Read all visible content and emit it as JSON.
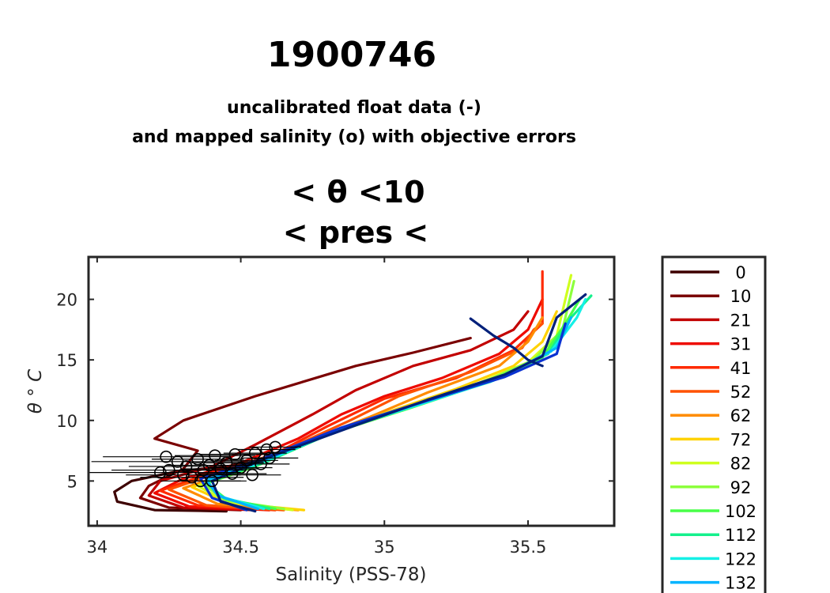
{
  "title": "1900746",
  "subtitle_lines": [
    "uncalibrated float data (-)",
    "and mapped salinity (o) with objective errors"
  ],
  "panel_title_lines": [
    "< θ <10",
    "< pres <"
  ],
  "chart_data": {
    "type": "line",
    "xlabel": "Salinity (PSS-78)",
    "ylabel": "θ ° C",
    "xlim": [
      33.97,
      35.8
    ],
    "ylim": [
      1.3,
      23.5
    ],
    "xticks": [
      34,
      34.5,
      35,
      35.5
    ],
    "xtick_labels": [
      "34",
      "34.5",
      "35",
      "35.5"
    ],
    "yticks": [
      5,
      10,
      15,
      20
    ],
    "ytick_labels": [
      "5",
      "10",
      "15",
      "20"
    ],
    "grid": false,
    "legend": {
      "placement": "outside-right",
      "title": "",
      "entries": [
        {
          "label": "0",
          "color": "#3d0000"
        },
        {
          "label": "10",
          "color": "#7a0000"
        },
        {
          "label": "21",
          "color": "#c20000"
        },
        {
          "label": "31",
          "color": "#ee0a00"
        },
        {
          "label": "41",
          "color": "#ff2a00"
        },
        {
          "label": "52",
          "color": "#ff5200"
        },
        {
          "label": "62",
          "color": "#ff8c00"
        },
        {
          "label": "72",
          "color": "#ffd200"
        },
        {
          "label": "82",
          "color": "#cfff1e"
        },
        {
          "label": "92",
          "color": "#8cff3c"
        },
        {
          "label": "102",
          "color": "#48ff48"
        },
        {
          "label": "112",
          "color": "#14f08c"
        },
        {
          "label": "122",
          "color": "#14f0e6"
        },
        {
          "label": "132",
          "color": "#00b4ff"
        }
      ]
    },
    "series": [
      {
        "label": "0",
        "color": "#3d0000",
        "points": [
          [
            34.45,
            2.5
          ],
          [
            34.2,
            2.6
          ],
          [
            34.07,
            3.3
          ],
          [
            34.06,
            4.1
          ],
          [
            34.12,
            5.0
          ],
          [
            34.28,
            5.8
          ],
          [
            34.45,
            6.2
          ]
        ]
      },
      {
        "label": "10",
        "color": "#7a0000",
        "points": [
          [
            34.5,
            2.6
          ],
          [
            34.25,
            2.8
          ],
          [
            34.15,
            3.6
          ],
          [
            34.18,
            4.6
          ],
          [
            34.3,
            6.0
          ],
          [
            34.35,
            7.5
          ],
          [
            34.2,
            8.5
          ],
          [
            34.3,
            10.0
          ],
          [
            34.55,
            12.0
          ],
          [
            34.9,
            14.5
          ],
          [
            35.1,
            15.6
          ],
          [
            35.3,
            16.8
          ]
        ]
      },
      {
        "label": "21",
        "color": "#c20000",
        "points": [
          [
            34.55,
            2.6
          ],
          [
            34.3,
            2.8
          ],
          [
            34.18,
            3.8
          ],
          [
            34.22,
            5.0
          ],
          [
            34.4,
            6.2
          ],
          [
            34.55,
            8.0
          ],
          [
            34.75,
            10.5
          ],
          [
            34.9,
            12.5
          ],
          [
            35.1,
            14.5
          ],
          [
            35.3,
            15.8
          ],
          [
            35.45,
            17.5
          ],
          [
            35.5,
            19.0
          ]
        ]
      },
      {
        "label": "31",
        "color": "#ee0a00",
        "points": [
          [
            34.6,
            2.6
          ],
          [
            34.32,
            2.9
          ],
          [
            34.2,
            4.0
          ],
          [
            34.3,
            5.2
          ],
          [
            34.5,
            6.5
          ],
          [
            34.7,
            8.5
          ],
          [
            34.85,
            10.5
          ],
          [
            35.0,
            12.0
          ],
          [
            35.2,
            13.5
          ],
          [
            35.4,
            15.5
          ],
          [
            35.5,
            17.5
          ],
          [
            35.55,
            20.0
          ]
        ]
      },
      {
        "label": "41",
        "color": "#ff2a00",
        "points": [
          [
            34.62,
            2.6
          ],
          [
            34.35,
            3.0
          ],
          [
            34.22,
            4.2
          ],
          [
            34.35,
            5.3
          ],
          [
            34.6,
            7.0
          ],
          [
            34.8,
            9.5
          ],
          [
            35.0,
            11.8
          ],
          [
            35.25,
            13.5
          ],
          [
            35.45,
            15.8
          ],
          [
            35.55,
            18.0
          ],
          [
            35.55,
            22.3
          ]
        ]
      },
      {
        "label": "52",
        "color": "#ff5200",
        "points": [
          [
            34.65,
            2.6
          ],
          [
            34.38,
            3.0
          ],
          [
            34.25,
            4.3
          ],
          [
            34.4,
            5.5
          ],
          [
            34.65,
            7.5
          ],
          [
            34.88,
            10.0
          ],
          [
            35.05,
            12.0
          ],
          [
            35.3,
            14.0
          ],
          [
            35.48,
            16.0
          ],
          [
            35.52,
            17.5
          ],
          [
            35.55,
            18.0
          ]
        ]
      },
      {
        "label": "62",
        "color": "#ff8c00",
        "points": [
          [
            34.7,
            2.6
          ],
          [
            34.42,
            3.1
          ],
          [
            34.3,
            4.4
          ],
          [
            34.45,
            5.6
          ],
          [
            34.7,
            8.0
          ],
          [
            34.95,
            10.3
          ],
          [
            35.15,
            12.3
          ],
          [
            35.4,
            14.5
          ],
          [
            35.5,
            16.5
          ],
          [
            35.55,
            18.5
          ]
        ]
      },
      {
        "label": "72",
        "color": "#ffd200",
        "points": [
          [
            34.72,
            2.6
          ],
          [
            34.45,
            3.2
          ],
          [
            34.33,
            4.5
          ],
          [
            34.5,
            5.8
          ],
          [
            34.75,
            8.3
          ],
          [
            35.0,
            10.6
          ],
          [
            35.25,
            12.6
          ],
          [
            35.45,
            14.5
          ],
          [
            35.55,
            16.5
          ],
          [
            35.6,
            19.0
          ]
        ]
      },
      {
        "label": "82",
        "color": "#cfff1e",
        "points": [
          [
            34.68,
            2.6
          ],
          [
            34.45,
            3.3
          ],
          [
            34.35,
            4.6
          ],
          [
            34.52,
            6.0
          ],
          [
            34.78,
            8.6
          ],
          [
            35.05,
            10.9
          ],
          [
            35.3,
            12.8
          ],
          [
            35.5,
            14.8
          ],
          [
            35.6,
            17.0
          ],
          [
            35.65,
            22.0
          ]
        ]
      },
      {
        "label": "92",
        "color": "#8cff3c",
        "points": [
          [
            34.65,
            2.7
          ],
          [
            34.45,
            3.4
          ],
          [
            34.37,
            4.7
          ],
          [
            34.55,
            6.2
          ],
          [
            34.8,
            8.8
          ],
          [
            35.08,
            11.0
          ],
          [
            35.33,
            13.0
          ],
          [
            35.52,
            15.0
          ],
          [
            35.62,
            17.5
          ],
          [
            35.66,
            21.5
          ]
        ]
      },
      {
        "label": "102",
        "color": "#48ff48",
        "points": [
          [
            34.62,
            2.7
          ],
          [
            34.45,
            3.5
          ],
          [
            34.38,
            4.8
          ],
          [
            34.57,
            6.4
          ],
          [
            34.82,
            9.0
          ],
          [
            35.1,
            11.1
          ],
          [
            35.35,
            13.1
          ],
          [
            35.55,
            15.2
          ],
          [
            35.63,
            18.0
          ],
          [
            35.68,
            20.0
          ]
        ]
      },
      {
        "label": "112",
        "color": "#14f08c",
        "points": [
          [
            34.6,
            2.7
          ],
          [
            34.44,
            3.6
          ],
          [
            34.38,
            4.9
          ],
          [
            34.58,
            6.5
          ],
          [
            34.83,
            9.1
          ],
          [
            35.1,
            11.2
          ],
          [
            35.37,
            13.2
          ],
          [
            35.57,
            15.5
          ],
          [
            35.65,
            18.5
          ],
          [
            35.72,
            20.3
          ]
        ]
      },
      {
        "label": "122",
        "color": "#14f0e6",
        "points": [
          [
            34.58,
            2.7
          ],
          [
            34.43,
            3.7
          ],
          [
            34.38,
            5.0
          ],
          [
            34.58,
            6.6
          ],
          [
            34.84,
            9.2
          ],
          [
            35.12,
            11.3
          ],
          [
            35.38,
            13.3
          ],
          [
            35.58,
            15.7
          ],
          [
            35.67,
            18.5
          ],
          [
            35.7,
            20.0
          ]
        ]
      },
      {
        "label": "132",
        "color": "#00b4ff",
        "points": [
          [
            34.56,
            2.7
          ],
          [
            34.42,
            3.8
          ],
          [
            34.38,
            5.1
          ],
          [
            34.58,
            6.7
          ],
          [
            34.85,
            9.3
          ],
          [
            35.12,
            11.4
          ],
          [
            35.4,
            13.5
          ],
          [
            35.6,
            16.0
          ],
          [
            35.65,
            18.5
          ]
        ]
      },
      {
        "label": "",
        "color": "#0a32d2",
        "points": [
          [
            34.52,
            2.6
          ],
          [
            34.4,
            3.6
          ],
          [
            34.36,
            5.2
          ],
          [
            34.57,
            6.8
          ],
          [
            34.85,
            9.4
          ],
          [
            35.13,
            11.5
          ],
          [
            35.42,
            13.6
          ],
          [
            35.6,
            15.5
          ],
          [
            35.63,
            18.0
          ]
        ]
      },
      {
        "label": "",
        "color": "#00207a",
        "points": [
          [
            34.55,
            2.5
          ],
          [
            34.43,
            3.3
          ],
          [
            34.4,
            5.0
          ],
          [
            34.6,
            7.0
          ],
          [
            34.9,
            9.6
          ],
          [
            35.15,
            11.7
          ],
          [
            35.42,
            13.8
          ],
          [
            35.55,
            15.3
          ],
          [
            35.6,
            18.5
          ],
          [
            35.7,
            20.4
          ]
        ]
      },
      {
        "label": "",
        "color": "#00207a",
        "points": [
          [
            35.3,
            18.4
          ],
          [
            35.38,
            17.0
          ],
          [
            35.45,
            16.0
          ],
          [
            35.5,
            15.0
          ],
          [
            35.55,
            14.5
          ]
        ]
      }
    ],
    "mapped_points": [
      {
        "x": 34.22,
        "y": 5.7,
        "err": 0.28
      },
      {
        "x": 34.25,
        "y": 5.9,
        "err": 0.2
      },
      {
        "x": 34.28,
        "y": 6.6,
        "err": 0.3
      },
      {
        "x": 34.24,
        "y": 7.0,
        "err": 0.22
      },
      {
        "x": 34.31,
        "y": 6.2,
        "err": 0.2
      },
      {
        "x": 34.33,
        "y": 5.3,
        "err": 0.18
      },
      {
        "x": 34.35,
        "y": 6.8,
        "err": 0.16
      },
      {
        "x": 34.37,
        "y": 5.9,
        "err": 0.15
      },
      {
        "x": 34.39,
        "y": 6.3,
        "err": 0.15
      },
      {
        "x": 34.4,
        "y": 5.0,
        "err": 0.12
      },
      {
        "x": 34.41,
        "y": 7.1,
        "err": 0.14
      },
      {
        "x": 34.43,
        "y": 6.0,
        "err": 0.13
      },
      {
        "x": 34.45,
        "y": 6.5,
        "err": 0.13
      },
      {
        "x": 34.47,
        "y": 5.6,
        "err": 0.12
      },
      {
        "x": 34.48,
        "y": 7.2,
        "err": 0.12
      },
      {
        "x": 34.5,
        "y": 6.1,
        "err": 0.11
      },
      {
        "x": 34.52,
        "y": 6.7,
        "err": 0.11
      },
      {
        "x": 34.54,
        "y": 5.5,
        "err": 0.1
      },
      {
        "x": 34.55,
        "y": 7.3,
        "err": 0.11
      },
      {
        "x": 34.57,
        "y": 6.4,
        "err": 0.1
      },
      {
        "x": 34.59,
        "y": 7.6,
        "err": 0.1
      },
      {
        "x": 34.6,
        "y": 6.9,
        "err": 0.1
      },
      {
        "x": 34.62,
        "y": 7.8,
        "err": 0.09
      },
      {
        "x": 34.3,
        "y": 5.5,
        "err": 0.2
      },
      {
        "x": 34.36,
        "y": 5.0,
        "err": 0.14
      }
    ]
  }
}
